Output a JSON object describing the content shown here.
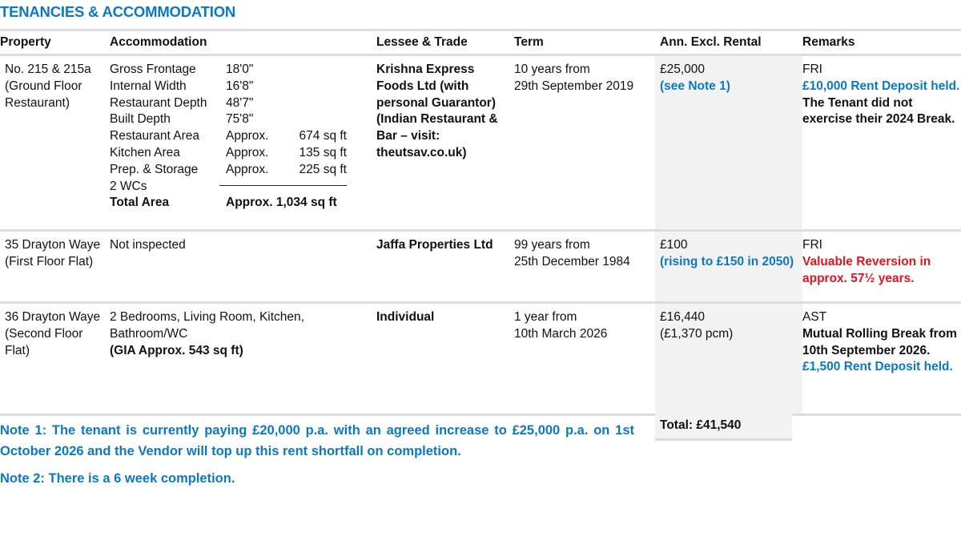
{
  "title": "TENANCIES & ACCOMMODATION",
  "headers": [
    "Property",
    "Accommodation",
    "Lessee & Trade",
    "Term",
    "Ann. Excl. Rental",
    "Remarks"
  ],
  "rows": [
    {
      "property": [
        "No. 215 & 215a",
        "(Ground Floor",
        "Restaurant)"
      ],
      "accommodation": {
        "items": [
          {
            "label": "Gross Frontage",
            "value": "18'0\""
          },
          {
            "label": "Internal Width",
            "value": "16'8\""
          },
          {
            "label": "Restaurant Depth",
            "value": "48'7\""
          },
          {
            "label": "Built Depth",
            "value": "75'8\""
          },
          {
            "label": "Restaurant Area",
            "value": "Approx.",
            "area": "674 sq ft"
          },
          {
            "label": "Kitchen Area",
            "value": "Approx.",
            "area": "135 sq ft"
          },
          {
            "label": "Prep. & Storage",
            "value": "Approx.",
            "area": "225 sq ft"
          },
          {
            "label": "2 WCs"
          }
        ],
        "total_label": "Total Area",
        "total_value": "Approx. 1,034 sq ft"
      },
      "lessee": "Krishna Express Foods Ltd (with personal Guarantor) (Indian Restaurant & Bar – visit: theutsav.co.uk)",
      "term": [
        "10 years from",
        "29th September 2019"
      ],
      "rental": "£25,000",
      "rental_note": "(see Note 1)",
      "remarks_1": "FRI",
      "remarks_2": "£10,000 Rent Deposit held.",
      "remarks_3": "The Tenant did not exercise their 2024 Break."
    },
    {
      "property": "35 Drayton Waye (First Floor Flat)",
      "accommodation": "Not inspected",
      "lessee": "Jaffa Properties Ltd",
      "term": [
        "99 years from",
        "25th December 1984"
      ],
      "rental": "£100",
      "rental_note": "(rising to £150 in 2050)",
      "remarks_1": "FRI",
      "remarks_2": "Valuable Reversion in approx. 57½ years."
    },
    {
      "property": "36 Drayton Waye (Second Floor Flat)",
      "accommodation": "2 Bedrooms, Living Room, Kitchen, Bathroom/WC",
      "accommodation_gia": "(GIA Approx. 543 sq ft)",
      "lessee": "Individual",
      "term": [
        "1 year from",
        "10th March 2026"
      ],
      "rental": "£16,440",
      "rental_note": "(£1,370 pcm)",
      "remarks_1": "AST",
      "remarks_2": "Mutual Rolling Break from 10th September 2026.",
      "remarks_3": "£1,500 Rent Deposit held."
    }
  ],
  "total": "Total: £41,540",
  "notes": [
    "Note 1: The tenant is currently paying £20,000 p.a. with an agreed increase to £25,000 p.a. on 1st October 2026 and the Vendor will top up this rent shortfall on completion.",
    "Note 2: There is a 6 week completion."
  ],
  "colors": {
    "accent": "#0a78c2",
    "warning": "#e3131b",
    "shade": "#f2f2f2"
  }
}
